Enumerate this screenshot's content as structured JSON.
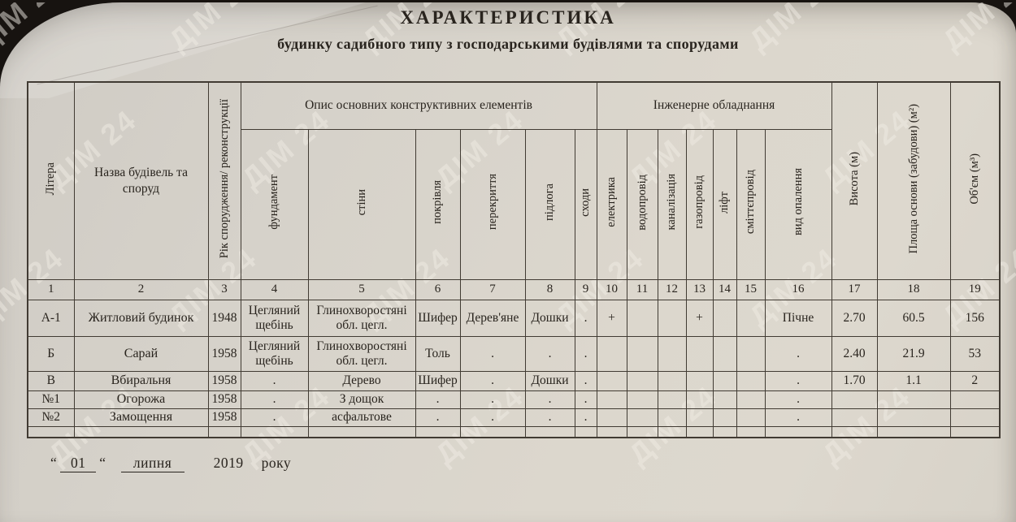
{
  "title": "ХАРАКТЕРИСТИКА",
  "subtitle": "будинку садибного типу з господарськими будівлями та спорудами",
  "watermark": {
    "text": "ДІМ 24"
  },
  "table": {
    "groups": [
      {
        "label": "Опис основних конструктивних елементів"
      },
      {
        "label": "Інженерне обладнання"
      }
    ],
    "columns": [
      {
        "num": "1",
        "label": "Літера"
      },
      {
        "num": "2",
        "label": "Назва будівель та споруд"
      },
      {
        "num": "3",
        "label": "Рік спорудження/ реконструкції"
      },
      {
        "num": "4",
        "label": "фундамент"
      },
      {
        "num": "5",
        "label": "стіни"
      },
      {
        "num": "6",
        "label": "покрівля"
      },
      {
        "num": "7",
        "label": "перекриття"
      },
      {
        "num": "8",
        "label": "підлога"
      },
      {
        "num": "9",
        "label": "сходи"
      },
      {
        "num": "10",
        "label": "електрика"
      },
      {
        "num": "11",
        "label": "водопровід"
      },
      {
        "num": "12",
        "label": "каналізація"
      },
      {
        "num": "13",
        "label": "газопровід"
      },
      {
        "num": "14",
        "label": "ліфт"
      },
      {
        "num": "15",
        "label": "сміттєпровід"
      },
      {
        "num": "16",
        "label": "вид опалення"
      },
      {
        "num": "17",
        "label": "Висота (м)"
      },
      {
        "num": "18",
        "label": "Площа основи (забудови) (м²)"
      },
      {
        "num": "19",
        "label": "Об'єм (м³)"
      }
    ],
    "rows": [
      {
        "cells": [
          "А-1",
          "Житловий будинок",
          "1948",
          "Цегляний щебінь",
          "Глинохворостяні обл. цегл.",
          "Шифер",
          "Дерев'яне",
          "Дошки",
          ".",
          "+",
          "",
          "",
          "+",
          "",
          "",
          "Пічне",
          "2.70",
          "60.5",
          "156"
        ]
      },
      {
        "cells": [
          "Б",
          "Сарай",
          "1958",
          "Цегляний щебінь",
          "Глинохворостяні обл. цегл.",
          "Толь",
          ".",
          ".",
          ".",
          "",
          "",
          "",
          "",
          "",
          "",
          ".",
          "2.40",
          "21.9",
          "53"
        ]
      },
      {
        "cells": [
          "В",
          "Вбиральня",
          "1958",
          ".",
          "Дерево",
          "Шифер",
          ".",
          "Дошки",
          ".",
          "",
          "",
          "",
          "",
          "",
          "",
          ".",
          "1.70",
          "1.1",
          "2"
        ]
      },
      {
        "cells": [
          "№1",
          "Огорожа",
          "1958",
          ".",
          "З дощок",
          ".",
          ".",
          ".",
          ".",
          "",
          "",
          "",
          "",
          "",
          "",
          ".",
          "",
          "",
          ""
        ]
      },
      {
        "cells": [
          "№2",
          "Замощення",
          "1958",
          ".",
          "асфальтове",
          ".",
          ".",
          ".",
          ".",
          "",
          "",
          "",
          "",
          "",
          "",
          ".",
          "",
          "",
          ""
        ]
      },
      {
        "cells": [
          "",
          "",
          "",
          "",
          "",
          "",
          "",
          "",
          "",
          "",
          "",
          "",
          "",
          "",
          "",
          "",
          "",
          "",
          ""
        ]
      }
    ]
  },
  "footer": {
    "open_quote": "“",
    "day": "01",
    "close_quote": "“",
    "month": "липня",
    "year": "2019",
    "suffix": "року"
  }
}
